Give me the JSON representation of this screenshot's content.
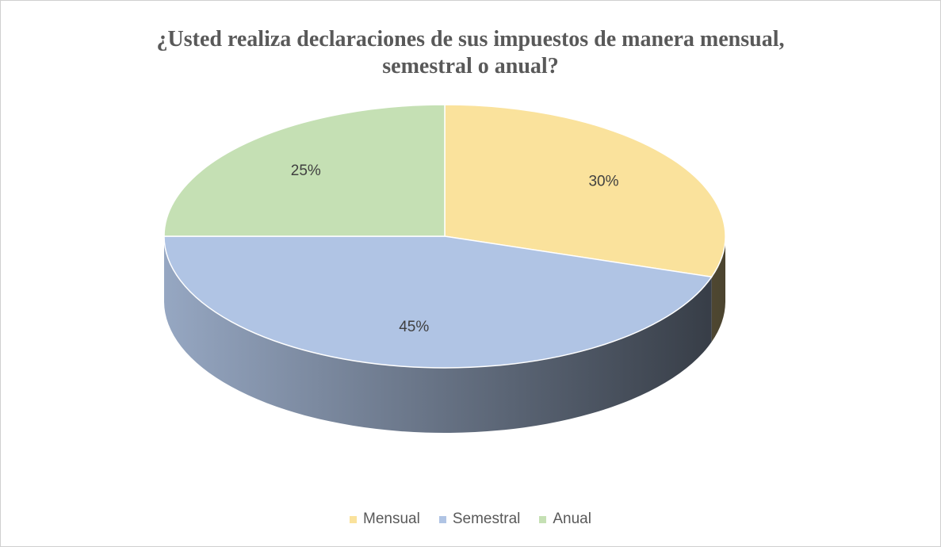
{
  "chart_data": {
    "type": "pie",
    "title": "¿Usted realiza declaraciones de sus impuestos de manera mensual, semestral o anual?",
    "categories": [
      "Mensual",
      "Semestral",
      "Anual"
    ],
    "values": [
      30,
      45,
      25
    ],
    "value_labels": [
      "30%",
      "45%",
      "25%"
    ],
    "colors": [
      "#fae29c",
      "#b0c4e4",
      "#c5e0b4"
    ],
    "legend": "bottom"
  }
}
